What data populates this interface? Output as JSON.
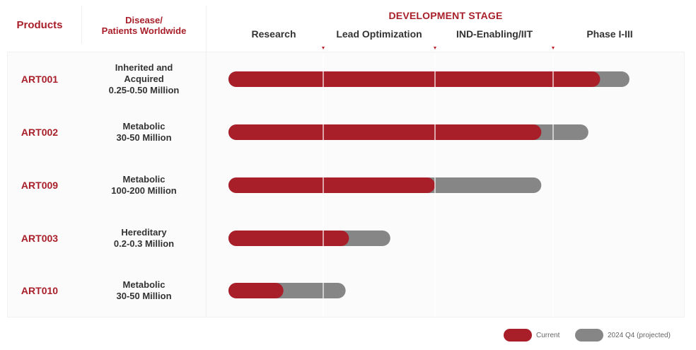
{
  "header": {
    "products": "Products",
    "disease_line1": "Disease/",
    "disease_line2": "Patients Worldwide",
    "development_stage": "DEVELOPMENT STAGE"
  },
  "colors": {
    "current": "#a81f2a",
    "projected": "#868686",
    "accent": "#a81f2a"
  },
  "chart_data": {
    "type": "bar",
    "orientation": "horizontal",
    "stages": [
      "Research",
      "Lead Optimization",
      "IND-Enabling/IIT",
      "Phase I-III"
    ],
    "categories": [
      "ART001",
      "ART002",
      "ART009",
      "ART003",
      "ART010"
    ],
    "category_info": [
      [
        "Inherited and",
        "Acquired",
        "0.25-0.50 Million"
      ],
      [
        "Metabolic",
        "30-50 Million"
      ],
      [
        "Metabolic",
        "100-200 Million"
      ],
      [
        "Hereditary",
        "0.2-0.3 Million"
      ],
      [
        "Metabolic",
        "30-50 Million"
      ]
    ],
    "x_unit": "development stages completed",
    "xlim": [
      0,
      4
    ],
    "series": [
      {
        "name": "Current",
        "values": [
          3.4,
          2.9,
          2.0,
          1.23,
          0.58
        ]
      },
      {
        "name": "2024 Q4 (projected)",
        "values": [
          3.65,
          3.3,
          2.9,
          1.6,
          1.2
        ]
      }
    ],
    "legend_position": "bottom-right"
  }
}
